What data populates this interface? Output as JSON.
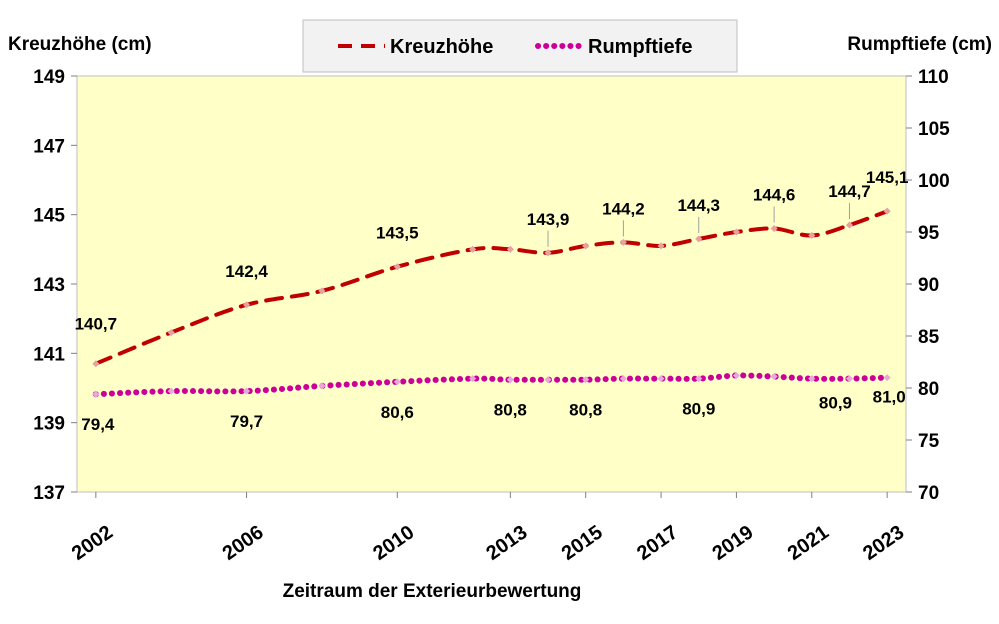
{
  "chart_data": {
    "type": "line",
    "y_left_label": "Kreuzhöhe (cm)",
    "y_right_label": "Rumpftiefe (cm)",
    "xlabel": "Zeitraum der Exterieurbewertung",
    "x_tick_labels": [
      "2002",
      "2006",
      "2010",
      "2013",
      "2015",
      "2017",
      "2019",
      "2021",
      "2023"
    ],
    "y_left_ticks": [
      "137",
      "139",
      "141",
      "143",
      "145",
      "147",
      "149"
    ],
    "y_right_ticks": [
      "70",
      "75",
      "80",
      "85",
      "90",
      "95",
      "100",
      "105",
      "110"
    ],
    "y_left_range": [
      137,
      149
    ],
    "y_right_range": [
      70,
      110
    ],
    "grid": false,
    "plot_background": "#ffffc8",
    "legend_position": "top-center",
    "x_years": [
      2002,
      2004,
      2006,
      2008,
      2010,
      2012,
      2013,
      2014,
      2015,
      2016,
      2017,
      2018,
      2019,
      2020,
      2021,
      2022,
      2023
    ],
    "series": [
      {
        "name": "Kreuzhöhe",
        "axis": "left",
        "color": "#c00000",
        "style": "dashed",
        "values": [
          140.7,
          141.6,
          142.4,
          142.8,
          143.5,
          144.0,
          144.0,
          143.9,
          144.1,
          144.2,
          144.1,
          144.3,
          144.5,
          144.6,
          144.4,
          144.7,
          145.1
        ],
        "data_labels": [
          {
            "year": 2002,
            "value": 140.7,
            "text": "140,7"
          },
          {
            "year": 2006,
            "value": 142.4,
            "text": "142,4"
          },
          {
            "year": 2010,
            "value": 143.5,
            "text": "143,5"
          },
          {
            "year": 2014,
            "value": 143.9,
            "text": "143,9"
          },
          {
            "year": 2016,
            "value": 144.2,
            "text": "144,2"
          },
          {
            "year": 2018,
            "value": 144.3,
            "text": "144,3"
          },
          {
            "year": 2020,
            "value": 144.6,
            "text": "144,6"
          },
          {
            "year": 2022,
            "value": 144.7,
            "text": "144,7"
          },
          {
            "year": 2023,
            "value": 145.1,
            "text": "145,1"
          }
        ]
      },
      {
        "name": "Rumpftiefe",
        "axis": "right",
        "color": "#cc0099",
        "style": "dotted",
        "values": [
          79.4,
          79.7,
          79.7,
          80.2,
          80.6,
          80.9,
          80.8,
          80.8,
          80.8,
          80.9,
          80.9,
          80.9,
          81.2,
          81.1,
          80.9,
          80.9,
          81.0
        ],
        "data_labels": [
          {
            "year": 2002,
            "value": 79.4,
            "text": "79,4"
          },
          {
            "year": 2006,
            "value": 79.7,
            "text": "79,7"
          },
          {
            "year": 2010,
            "value": 80.6,
            "text": "80,6"
          },
          {
            "year": 2013,
            "value": 80.8,
            "text": "80,8"
          },
          {
            "year": 2015,
            "value": 80.8,
            "text": "80,8"
          },
          {
            "year": 2018,
            "value": 80.9,
            "text": "80,9"
          },
          {
            "year": 2022,
            "value": 80.9,
            "text": "80,9"
          },
          {
            "year": 2023,
            "value": 81.0,
            "text": "81,0"
          }
        ]
      }
    ]
  }
}
